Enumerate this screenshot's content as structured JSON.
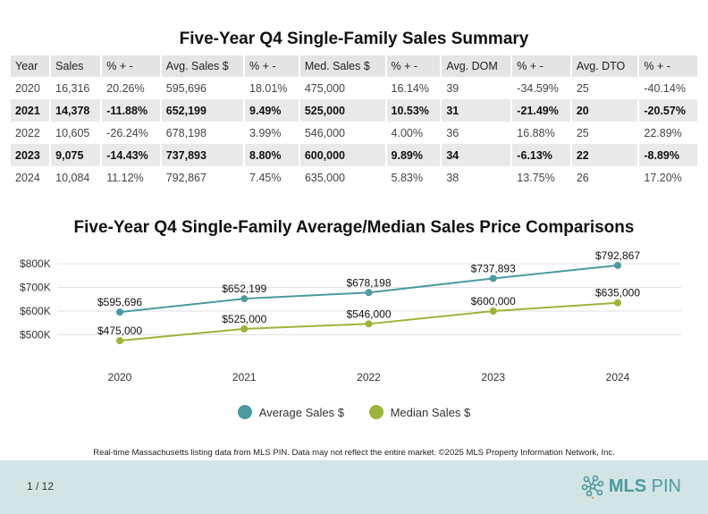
{
  "summary_table": {
    "title": "Five-Year Q4 Single-Family Sales Summary",
    "headers": [
      "Year",
      "Sales",
      "% + -",
      "Avg. Sales $",
      "% + -",
      "Med. Sales $",
      "% + -",
      "Avg. DOM",
      "% + -",
      "Avg. DTO",
      "% + -"
    ],
    "rows": [
      [
        "2020",
        "16,316",
        "20.26%",
        "595,696",
        "18.01%",
        "475,000",
        "16.14%",
        "39",
        "-34.59%",
        "25",
        "-40.14%"
      ],
      [
        "2021",
        "14,378",
        "-11.88%",
        "652,199",
        "9.49%",
        "525,000",
        "10.53%",
        "31",
        "-21.49%",
        "20",
        "-20.57%"
      ],
      [
        "2022",
        "10,605",
        "-26.24%",
        "678,198",
        "3.99%",
        "546,000",
        "4.00%",
        "36",
        "16.88%",
        "25",
        "22.89%"
      ],
      [
        "2023",
        "9,075",
        "-14.43%",
        "737,893",
        "8.80%",
        "600,000",
        "9.89%",
        "34",
        "-6.13%",
        "22",
        "-8.89%"
      ],
      [
        "2024",
        "10,084",
        "11.12%",
        "792,867",
        "7.45%",
        "635,000",
        "5.83%",
        "38",
        "13.75%",
        "26",
        "17.20%"
      ]
    ]
  },
  "chart_data": {
    "type": "line",
    "title": "Five-Year Q4 Single-Family Average/Median Sales Price Comparisons",
    "categories": [
      "2020",
      "2021",
      "2022",
      "2023",
      "2024"
    ],
    "series": [
      {
        "name": "Average Sales $",
        "values": [
          595696,
          652199,
          678198,
          737893,
          792867
        ],
        "labels": [
          "$595,696",
          "$652,199",
          "$678,198",
          "$737,893",
          "$792,867"
        ],
        "color": "#4a9aa0"
      },
      {
        "name": "Median Sales $",
        "values": [
          475000,
          525000,
          546000,
          600000,
          635000
        ],
        "labels": [
          "$475,000",
          "$525,000",
          "$546,000",
          "$600,000",
          "$635,000"
        ],
        "color": "#9cb43a"
      }
    ],
    "yticks": [
      500000,
      600000,
      700000,
      800000
    ],
    "ytick_labels": [
      "$500K",
      "$600K",
      "$700K",
      "$800K"
    ],
    "ylim": [
      400000,
      800000
    ],
    "grid": true,
    "legend_position": "bottom"
  },
  "footnote": "Real-time Massachusetts listing data from MLS PIN. Data may not reflect the entire market. ©2025 MLS Property Information Network, Inc.",
  "footer": {
    "page": "1 / 12",
    "logo_text_bold": "MLS",
    "logo_text": " PIN"
  }
}
